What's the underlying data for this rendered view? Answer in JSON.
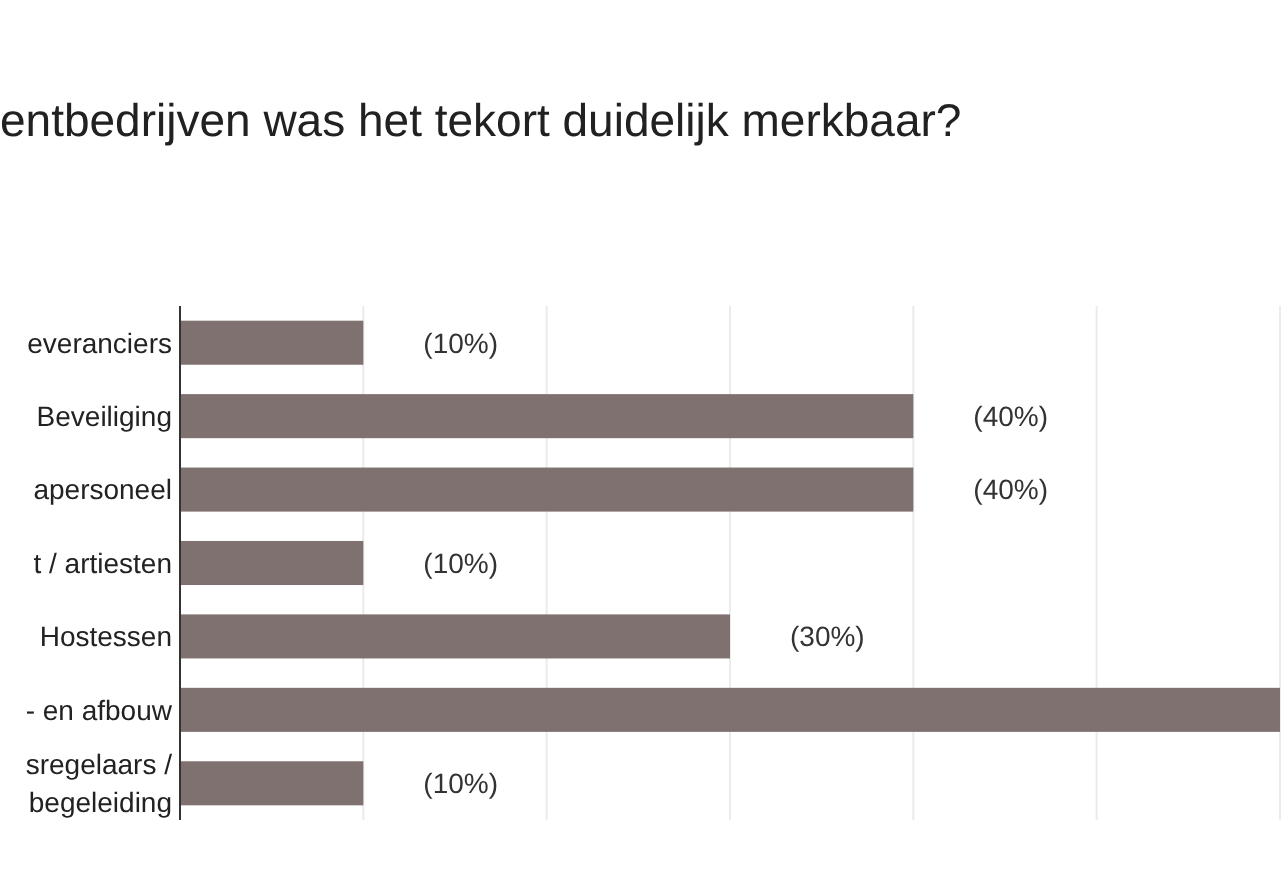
{
  "chart_data": {
    "type": "bar",
    "orientation": "horizontal",
    "title": "entbedrijven was het tekort duidelijk merkbaar?",
    "categories": [
      "everanciers",
      "Beveiliging",
      "apersoneel",
      "t / artiesten",
      "Hostessen",
      "- en afbouw",
      "sregelaars /\nbegeleiding"
    ],
    "values": [
      10,
      40,
      40,
      10,
      30,
      60,
      10
    ],
    "value_labels": [
      "(10%)",
      "(40%)",
      "(40%)",
      "(10%)",
      "(30%)",
      null,
      "(10%)"
    ],
    "color": "#7f7170",
    "xlim": [
      0,
      60
    ],
    "xticks": [
      {
        "value": 0,
        "label": null
      },
      {
        "value": 10,
        "label": null
      },
      {
        "value": 20,
        "label": null
      },
      {
        "value": 30,
        "label": null
      },
      {
        "value": 40,
        "label": null
      },
      {
        "value": 50,
        "label": null
      },
      {
        "value": 60,
        "label": null
      }
    ],
    "tick_labels": "y",
    "grid": "x"
  }
}
